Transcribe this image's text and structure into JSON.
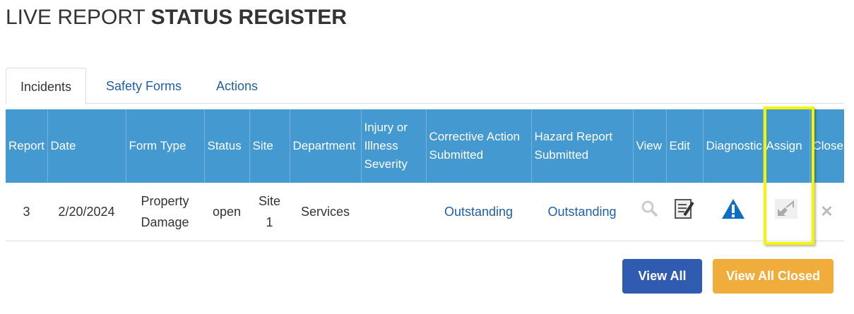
{
  "title": {
    "prefix": "LIVE REPORT",
    "bold": "STATUS REGISTER"
  },
  "tabs": [
    {
      "label": "Incidents",
      "active": true
    },
    {
      "label": "Safety Forms"
    },
    {
      "label": "Actions"
    }
  ],
  "table": {
    "headers": [
      "Report",
      "Date",
      "Form Type",
      "Status",
      "Site",
      "Department",
      "Injury or Illness Severity",
      "Corrective Action Submitted",
      "Hazard Report Submitted",
      "View",
      "Edit",
      "Diagnostic",
      "Assign",
      "Close"
    ],
    "rows": [
      {
        "report": "3",
        "date": "2/20/2024",
        "form_type": "Property Damage",
        "status": "open",
        "site": "Site 1",
        "department": "Services",
        "severity": "",
        "corrective": "Outstanding",
        "hazard": "Outstanding",
        "icons": [
          "search-icon",
          "edit-document-icon",
          "warning-icon",
          "assign-arrows-icon",
          "close-x-icon"
        ]
      }
    ]
  },
  "buttons": {
    "view_all": "View All",
    "view_all_closed": "View All Closed"
  },
  "colors": {
    "header": "#4499d0",
    "link": "#1f5fa6",
    "view_all": "#2f5bb0",
    "view_all_closed": "#f0ad3c",
    "highlight": "#f5f500"
  }
}
